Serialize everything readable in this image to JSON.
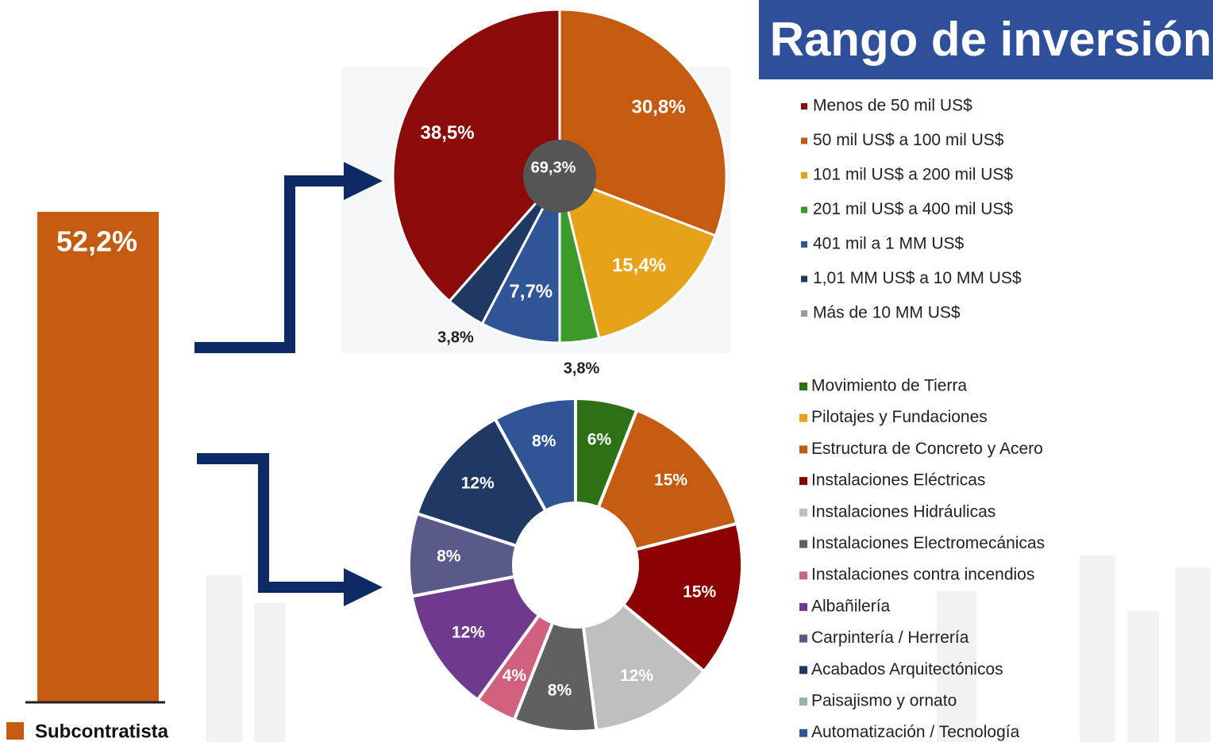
{
  "header": {
    "title": "Rango de inversión"
  },
  "chart_data": [
    {
      "type": "bar",
      "categories": [
        "Subcontratista"
      ],
      "values": [
        52.2
      ],
      "value_labels": [
        "52,2%"
      ],
      "color": "#c55a11"
    },
    {
      "type": "pie",
      "center_label": "69,3%",
      "categories": [
        "Menos de 50 mil US$",
        "50 mil US$ a 100 mil US$",
        "101 mil US$ a 200 mil US$",
        "201 mil US$ a 400 mil US$",
        "401 mil a 1 MM US$",
        "1,01 MM US$ a 10 MM US$",
        "Más de 10 MM US$"
      ],
      "values": [
        38.5,
        30.8,
        15.4,
        3.8,
        7.7,
        3.8,
        0
      ],
      "value_labels": [
        "38,5%",
        "30,8%",
        "15,4%",
        "3,8%",
        "7,7%",
        "3,8%",
        null
      ],
      "colors": [
        "#8b0a0a",
        "#c55a11",
        "#e8a21a",
        "#3a9a2a",
        "#2f5597",
        "#1f3864",
        "#9a9a9a"
      ]
    },
    {
      "type": "donut",
      "categories": [
        "Movimiento de Tierra",
        "Pilotajes y Fundaciones",
        "Estructura de Concreto y Acero",
        "Instalaciones Eléctricas",
        "Instalaciones Hidráulicas",
        "Instalaciones Electromecánicas",
        "Instalaciones contra incendios",
        "Albañilería",
        "Carpintería / Herrería",
        "Acabados Arquitectónicos",
        "Paisajismo y ornato",
        "Automatización / Tecnología"
      ],
      "values": [
        6,
        0,
        15,
        15,
        12,
        8,
        4,
        12,
        8,
        12,
        0,
        8
      ],
      "value_labels": [
        "6%",
        null,
        "15%",
        "15%",
        "12%",
        "8%",
        "4%",
        "12%",
        "8%",
        "12%",
        null,
        "8%"
      ],
      "colors": [
        "#2e7016",
        "#e8a21a",
        "#c55a11",
        "#8b0000",
        "#bfbfbf",
        "#606060",
        "#d1607f",
        "#6f3a8e",
        "#5a5a8a",
        "#1f3864",
        "#8fb3ad",
        "#2f5597"
      ]
    }
  ]
}
